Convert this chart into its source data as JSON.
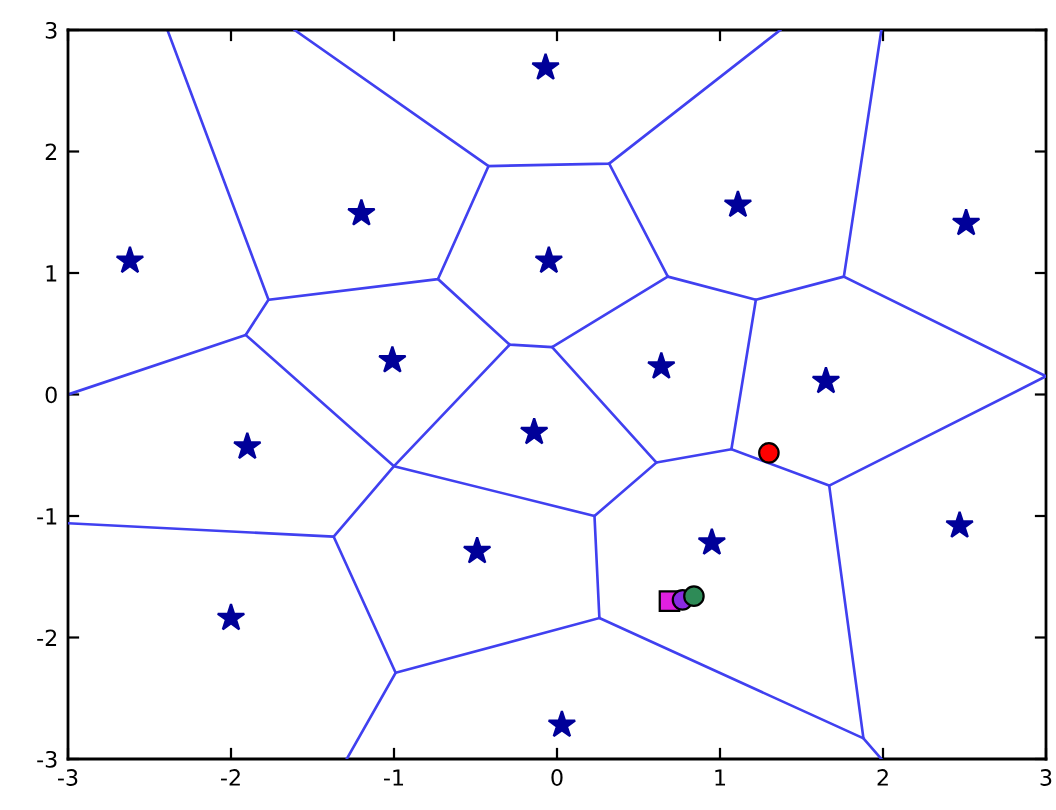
{
  "chart_data": {
    "type": "scatter",
    "xlim": [
      -3,
      3
    ],
    "ylim": [
      -3,
      3
    ],
    "xticks": [
      -3,
      -2,
      -1,
      0,
      1,
      2,
      3
    ],
    "yticks": [
      -3,
      -2,
      -1,
      0,
      1,
      2,
      3
    ],
    "series": [
      {
        "type": "line",
        "color": "#4040f0",
        "x": [
          -2.39,
          -1.77,
          -1.91,
          -3
        ],
        "values": [
          3,
          0.78,
          0.49,
          0
        ]
      },
      {
        "type": "line",
        "color": "#4040f0",
        "x": [
          -1.77,
          -0.73,
          -0.42,
          -1.61
        ],
        "values": [
          0.78,
          0.95,
          1.88,
          3
        ]
      },
      {
        "type": "line",
        "color": "#4040f0",
        "x": [
          -0.42,
          0.32,
          1.37
        ],
        "values": [
          1.88,
          1.9,
          3
        ]
      },
      {
        "type": "line",
        "color": "#4040f0",
        "x": [
          0.32,
          0.68,
          1.22,
          1.76,
          1.99
        ],
        "values": [
          1.9,
          0.97,
          0.78,
          0.97,
          3
        ]
      },
      {
        "type": "line",
        "color": "#4040f0",
        "x": [
          1.76,
          3,
          1.67,
          1.88,
          1.99
        ],
        "values": [
          0.97,
          0.15,
          -0.75,
          -2.83,
          -3
        ]
      },
      {
        "type": "line",
        "color": "#4040f0",
        "x": [
          -0.73,
          -0.29,
          -0.03,
          0.68
        ],
        "values": [
          0.95,
          0.41,
          0.39,
          0.97
        ]
      },
      {
        "type": "line",
        "color": "#4040f0",
        "x": [
          -1.91,
          -1.0,
          -0.29
        ],
        "values": [
          0.49,
          -0.59,
          0.41
        ]
      },
      {
        "type": "line",
        "color": "#4040f0",
        "x": [
          -0.03,
          0.61,
          1.07,
          1.22
        ],
        "values": [
          0.39,
          -0.56,
          -0.45,
          0.78
        ]
      },
      {
        "type": "line",
        "color": "#4040f0",
        "x": [
          0.61,
          0.23,
          -1.0,
          -1.37,
          -3
        ],
        "values": [
          -0.56,
          -1.0,
          -0.59,
          -1.17,
          -1.06
        ]
      },
      {
        "type": "line",
        "color": "#4040f0",
        "x": [
          1.07,
          1.67
        ],
        "values": [
          -0.45,
          -0.75
        ]
      },
      {
        "type": "line",
        "color": "#4040f0",
        "x": [
          0.23,
          0.26,
          1.88
        ],
        "values": [
          -1.0,
          -1.84,
          -2.83
        ]
      },
      {
        "type": "line",
        "color": "#4040f0",
        "x": [
          0.26,
          -0.99,
          -1.37
        ],
        "values": [
          -1.84,
          -2.29,
          -1.17
        ]
      },
      {
        "type": "line",
        "color": "#4040f0",
        "x": [
          -0.99,
          -1.29
        ],
        "values": [
          -2.29,
          -3
        ]
      },
      {
        "marker": "star",
        "color": "#000099",
        "x": [
          -2.62,
          -1.2,
          -0.07,
          -0.05,
          1.11,
          2.51,
          -1.01,
          0.64,
          1.65,
          -1.9,
          -0.14,
          -0.49,
          0.95,
          2.47,
          -2.0,
          0.03
        ],
        "values": [
          1.1,
          1.49,
          2.69,
          1.1,
          1.56,
          1.41,
          0.28,
          0.23,
          0.11,
          -0.43,
          -0.31,
          -1.29,
          -1.22,
          -1.08,
          -1.84,
          -2.72
        ]
      },
      {
        "marker": "circle",
        "color": "#ff0000",
        "x": [
          1.3
        ],
        "values": [
          -0.48
        ]
      },
      {
        "marker": "square",
        "color": "#e020e0",
        "x": [
          0.69
        ],
        "values": [
          -1.7
        ]
      },
      {
        "marker": "circle",
        "color": "#8a2be2",
        "x": [
          0.77
        ],
        "values": [
          -1.69
        ]
      },
      {
        "marker": "circle",
        "color": "#2e8b57",
        "x": [
          0.84
        ],
        "values": [
          -1.66
        ]
      }
    ]
  }
}
